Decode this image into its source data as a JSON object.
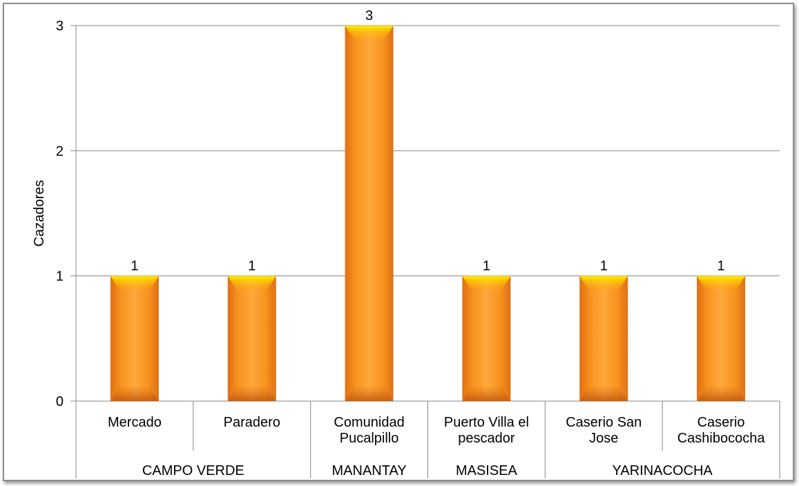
{
  "chart_data": {
    "type": "bar",
    "ylabel": "Cazadores",
    "ylim": [
      0,
      3
    ],
    "yticks": [
      0,
      1,
      2,
      3
    ],
    "grid": true,
    "categories": [
      {
        "label_lines": [
          "Mercado"
        ],
        "group": "CAMPO VERDE"
      },
      {
        "label_lines": [
          "Paradero"
        ],
        "group": "CAMPO VERDE"
      },
      {
        "label_lines": [
          "Comunidad",
          "Pucalpillo"
        ],
        "group": "MANANTAY"
      },
      {
        "label_lines": [
          "Puerto Villa el",
          "pescador"
        ],
        "group": "MASISEA"
      },
      {
        "label_lines": [
          "Caserio San",
          "Jose"
        ],
        "group": "YARINACOCHA"
      },
      {
        "label_lines": [
          "Caserio",
          "Cashibococha"
        ],
        "group": "YARINACOCHA"
      }
    ],
    "groups": [
      {
        "name": "CAMPO VERDE",
        "count": 2
      },
      {
        "name": "MANANTAY",
        "count": 1
      },
      {
        "name": "MASISEA",
        "count": 1
      },
      {
        "name": "YARINACOCHA",
        "count": 2
      }
    ],
    "values": [
      1,
      1,
      3,
      1,
      1,
      1
    ],
    "data_labels": [
      "1",
      "1",
      "3",
      "1",
      "1",
      "1"
    ],
    "bar_color": "#f7931e",
    "bar_highlight": "#ffe100",
    "bar_shadow": "#d56a12",
    "grid_color": "#868686"
  }
}
